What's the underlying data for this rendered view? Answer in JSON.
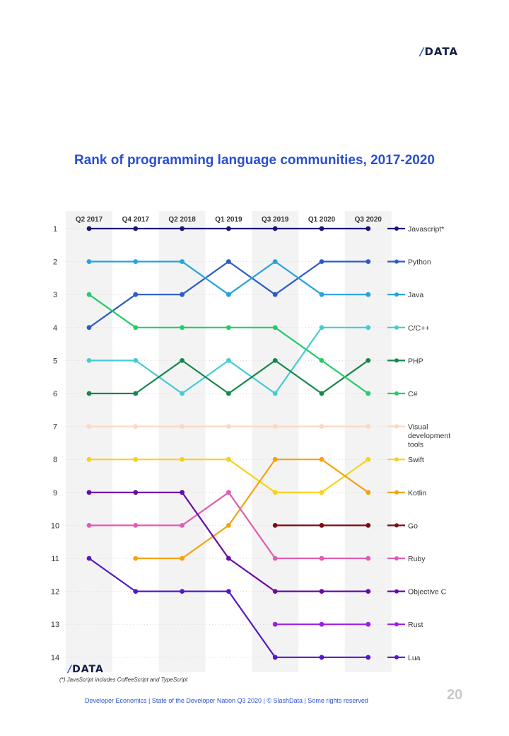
{
  "header": {
    "logo_text": "DATA",
    "logo_slash": "/"
  },
  "page_number": "20",
  "footer": {
    "text": "Developer Economics | State of the Developer Nation Q3 2020 | © SlashData | Some rights reserved"
  },
  "footnote": "(*) JavaScript includes CoffeeScript and TypeScript",
  "chart_data": {
    "type": "line",
    "chart_subtype": "bump",
    "title": "Rank of programming language communities, 2017-2020",
    "categories": [
      "Q2 2017",
      "Q4 2017",
      "Q2 2018",
      "Q1 2019",
      "Q3 2019",
      "Q1 2020",
      "Q3 2020"
    ],
    "ylim": [
      1,
      14
    ],
    "y_inverted": true,
    "y_ticks": [
      1,
      2,
      3,
      4,
      5,
      6,
      7,
      8,
      9,
      10,
      11,
      12,
      13,
      14
    ],
    "series": [
      {
        "name": "Javascript*",
        "color": "#1a1577",
        "values": [
          1,
          1,
          1,
          1,
          1,
          1,
          1
        ]
      },
      {
        "name": "Python",
        "color": "#2d5bc8",
        "values": [
          4,
          3,
          3,
          2,
          3,
          2,
          2
        ]
      },
      {
        "name": "Java",
        "color": "#26a2dc",
        "values": [
          2,
          2,
          2,
          3,
          2,
          3,
          3
        ]
      },
      {
        "name": "C/C++",
        "color": "#45cbd3",
        "values": [
          5,
          5,
          6,
          5,
          6,
          4,
          4
        ]
      },
      {
        "name": "PHP",
        "color": "#16874a",
        "values": [
          6,
          6,
          5,
          6,
          5,
          6,
          5
        ]
      },
      {
        "name": "C#",
        "color": "#23cc6c",
        "values": [
          3,
          4,
          4,
          4,
          4,
          5,
          6
        ]
      },
      {
        "name": "Visual development tools",
        "legend_lines": [
          "Visual",
          "development",
          "tools"
        ],
        "color": "#fbd8c4",
        "values": [
          7,
          7,
          7,
          7,
          7,
          7,
          7
        ]
      },
      {
        "name": "Swift",
        "color": "#f7d21c",
        "values": [
          8,
          8,
          8,
          8,
          9,
          9,
          8
        ]
      },
      {
        "name": "Kotlin",
        "color": "#f4a20f",
        "values": [
          null,
          11,
          11,
          10,
          8,
          8,
          9
        ]
      },
      {
        "name": "Go",
        "color": "#7a0c14",
        "values": [
          null,
          null,
          null,
          null,
          10,
          10,
          10
        ]
      },
      {
        "name": "Ruby",
        "color": "#df5cb0",
        "values": [
          10,
          10,
          10,
          9,
          11,
          11,
          11
        ]
      },
      {
        "name": "Objective C",
        "color": "#6a0aa6",
        "values": [
          9,
          9,
          9,
          11,
          12,
          12,
          12
        ]
      },
      {
        "name": "Rust",
        "color": "#9b1fe6",
        "values": [
          null,
          null,
          null,
          null,
          13,
          13,
          13
        ]
      },
      {
        "name": "Lua",
        "color": "#5218c9",
        "values": [
          11,
          12,
          12,
          12,
          14,
          14,
          14
        ]
      }
    ]
  }
}
